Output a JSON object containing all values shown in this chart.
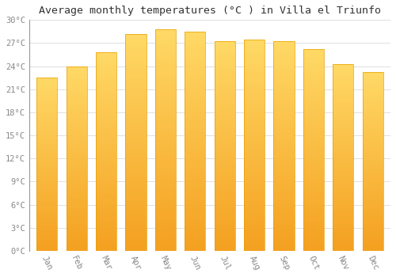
{
  "title": "Average monthly temperatures (°C ) in Villa el Triunfo",
  "months": [
    "Jan",
    "Feb",
    "Mar",
    "Apr",
    "May",
    "Jun",
    "Jul",
    "Aug",
    "Sep",
    "Oct",
    "Nov",
    "Dec"
  ],
  "temperatures": [
    22.5,
    24.0,
    25.8,
    28.2,
    28.8,
    28.5,
    27.3,
    27.5,
    27.3,
    26.2,
    24.3,
    23.2
  ],
  "bar_color_top": "#FFD966",
  "bar_color_bottom": "#F4A020",
  "bar_edge_color": "#E8A000",
  "ylim": [
    0,
    30
  ],
  "yticks": [
    0,
    3,
    6,
    9,
    12,
    15,
    18,
    21,
    24,
    27,
    30
  ],
  "background_color": "#FFFFFF",
  "grid_color": "#E0E0E0",
  "title_fontsize": 9.5,
  "tick_fontsize": 7.5,
  "font_family": "monospace",
  "tick_color": "#888888",
  "title_color": "#333333"
}
